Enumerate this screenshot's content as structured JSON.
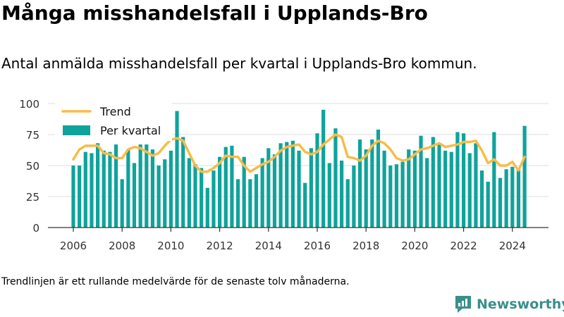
{
  "header": {
    "title": "Många misshandelsfall i Upplands-Bro",
    "subtitle": "Antal anmälda misshandelsfall per kvartal i Upplands-Bro kommun."
  },
  "footer": {
    "note": "Trendlinjen är ett rullande medelvärde för de senaste tolv månaderna.",
    "brand": "Newsworthy"
  },
  "colors": {
    "bars": "#0fa39b",
    "trend": "#f7bc49",
    "grid": "#dddddd",
    "brand": "#3a8f8a"
  },
  "chart_data": {
    "type": "bar",
    "x_ticks": [
      "2006",
      "2008",
      "2010",
      "2012",
      "2014",
      "2016",
      "2018",
      "2020",
      "2022",
      "2024"
    ],
    "y_ticks": [
      "0",
      "25",
      "50",
      "75",
      "100"
    ],
    "ylim": [
      0,
      100
    ],
    "grid": "horizontal",
    "legend": {
      "position": "top-left",
      "items": [
        "Trend",
        "Per kvartal"
      ]
    },
    "x_start": "2006-Q1",
    "series": [
      {
        "name": "Per kvartal",
        "type": "bar",
        "values": [
          50,
          50,
          61,
          60,
          68,
          62,
          61,
          67,
          39,
          63,
          52,
          67,
          67,
          63,
          50,
          55,
          62,
          94,
          73,
          56,
          51,
          48,
          32,
          46,
          57,
          65,
          66,
          39,
          57,
          39,
          43,
          56,
          64,
          59,
          68,
          69,
          70,
          62,
          36,
          64,
          76,
          95,
          52,
          80,
          54,
          39,
          50,
          71,
          63,
          71,
          79,
          62,
          50,
          51,
          53,
          63,
          62,
          74,
          56,
          73,
          67,
          62,
          61,
          77,
          76,
          60,
          68,
          46,
          37,
          77,
          40,
          47,
          49,
          48,
          82
        ]
      },
      {
        "name": "Trend",
        "type": "line",
        "values": [
          55,
          63,
          66,
          66,
          66,
          60,
          59,
          56,
          56,
          63,
          65,
          64,
          61,
          58,
          60,
          66,
          71,
          72,
          70,
          60,
          50,
          45,
          45,
          48,
          52,
          58,
          57,
          57,
          50,
          45,
          48,
          51,
          53,
          57,
          62,
          65,
          66,
          67,
          61,
          59,
          61,
          67,
          71,
          75,
          73,
          57,
          56,
          54,
          58,
          66,
          70,
          68,
          63,
          56,
          54,
          55,
          59,
          63,
          64,
          66,
          68,
          65,
          66,
          67,
          69,
          69,
          70,
          62,
          52,
          55,
          50,
          50,
          53,
          46,
          57
        ]
      }
    ]
  }
}
